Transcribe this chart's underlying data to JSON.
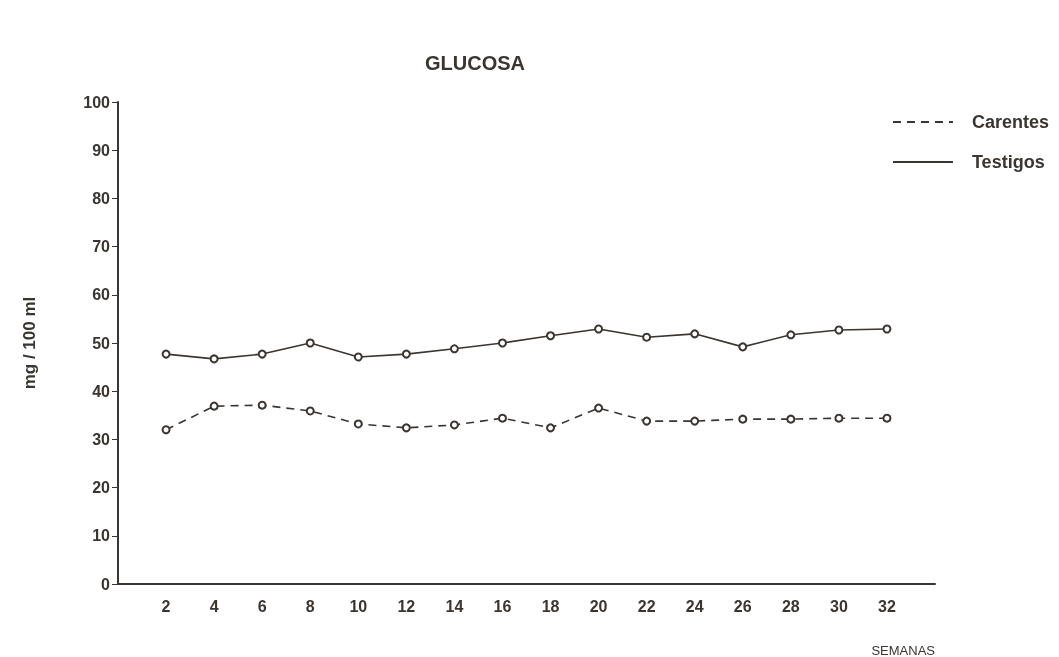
{
  "chart_data": {
    "type": "line",
    "title": "GLUCOSA",
    "xlabel": "SEMANAS",
    "ylabel": "mg / 100 ml",
    "x": [
      2,
      4,
      6,
      8,
      10,
      12,
      14,
      16,
      18,
      20,
      22,
      24,
      26,
      28,
      30,
      32
    ],
    "series": [
      {
        "name": "Carentes",
        "color": "#3a3530",
        "line_style": "dashed",
        "values": [
          32,
          36.9,
          37.1,
          35.9,
          33.2,
          32.4,
          33,
          34.4,
          32.4,
          36.5,
          33.8,
          33.8,
          34.2,
          34.2,
          34.4,
          34.4
        ]
      },
      {
        "name": "Testigos",
        "color": "#3a3530",
        "line_style": "solid",
        "values": [
          47.7,
          46.7,
          47.7,
          50,
          47.1,
          47.7,
          48.8,
          50,
          51.5,
          52.9,
          51.2,
          51.9,
          49.2,
          51.7,
          52.7,
          52.9
        ]
      }
    ],
    "xlim": [
      0,
      34
    ],
    "xticks": [
      2,
      4,
      6,
      8,
      10,
      12,
      14,
      16,
      18,
      20,
      22,
      24,
      26,
      28,
      30,
      32
    ],
    "ylim": [
      0,
      100
    ],
    "yticks": [
      0,
      10,
      20,
      30,
      40,
      50,
      60,
      70,
      80,
      90,
      100
    ],
    "marker": "circle",
    "grid": false,
    "legend": "top right"
  }
}
